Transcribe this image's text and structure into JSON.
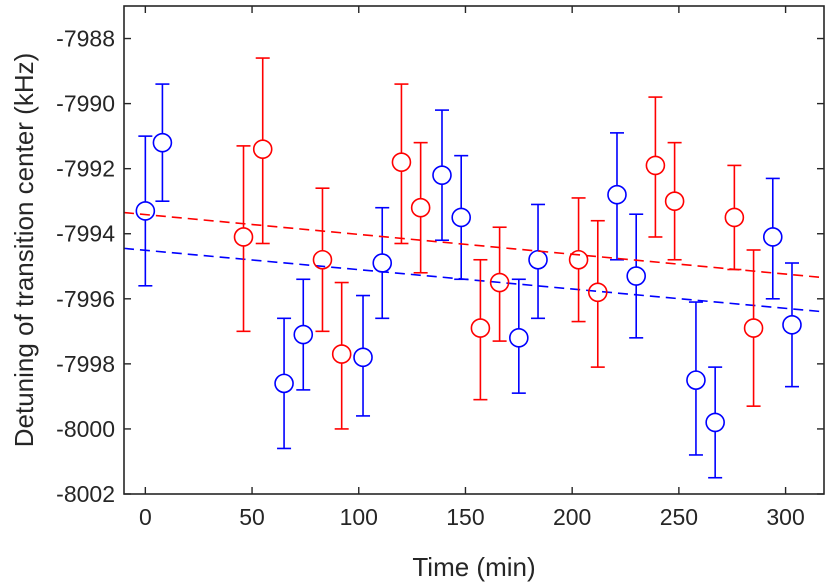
{
  "chart_data": {
    "type": "scatter",
    "title": "",
    "xlabel": "Time (min)",
    "ylabel": "Detuning of transition center (kHz)",
    "xlim": [
      -10,
      318
    ],
    "ylim": [
      -8002,
      -7987
    ],
    "xticks": [
      0,
      50,
      100,
      150,
      200,
      250,
      300
    ],
    "yticks": [
      -8002,
      -8000,
      -7998,
      -7996,
      -7994,
      -7992,
      -7990,
      -7988
    ],
    "grid": false,
    "legend": "none",
    "series": [
      {
        "name": "blue",
        "color": "#0000ff",
        "points": [
          {
            "x": 0,
            "y": -7993.3,
            "lo": -7995.6,
            "hi": -7991.0
          },
          {
            "x": 8,
            "y": -7991.2,
            "lo": -7993.0,
            "hi": -7989.4
          },
          {
            "x": 65,
            "y": -7998.6,
            "lo": -8000.6,
            "hi": -7996.6
          },
          {
            "x": 74,
            "y": -7997.1,
            "lo": -7998.8,
            "hi": -7995.4
          },
          {
            "x": 102,
            "y": -7997.8,
            "lo": -7999.6,
            "hi": -7995.9
          },
          {
            "x": 111,
            "y": -7994.9,
            "lo": -7996.6,
            "hi": -7993.2
          },
          {
            "x": 139,
            "y": -7992.2,
            "lo": -7994.2,
            "hi": -7990.2
          },
          {
            "x": 148,
            "y": -7993.5,
            "lo": -7995.4,
            "hi": -7991.6
          },
          {
            "x": 175,
            "y": -7997.2,
            "lo": -7998.9,
            "hi": -7995.4
          },
          {
            "x": 184,
            "y": -7994.8,
            "lo": -7996.6,
            "hi": -7993.1
          },
          {
            "x": 221,
            "y": -7992.8,
            "lo": -7994.8,
            "hi": -7990.9
          },
          {
            "x": 230,
            "y": -7995.3,
            "lo": -7997.2,
            "hi": -7993.4
          },
          {
            "x": 258,
            "y": -7998.5,
            "lo": -8000.8,
            "hi": -7996.1
          },
          {
            "x": 267,
            "y": -7999.8,
            "lo": -8001.5,
            "hi": -7998.1
          },
          {
            "x": 294,
            "y": -7994.1,
            "lo": -7996.0,
            "hi": -7992.3
          },
          {
            "x": 303,
            "y": -7996.8,
            "lo": -7998.7,
            "hi": -7994.9
          }
        ],
        "fit": {
          "x": [
            -10,
            318
          ],
          "y": [
            -7994.45,
            -7996.4
          ]
        }
      },
      {
        "name": "red",
        "color": "#ff0000",
        "points": [
          {
            "x": 46,
            "y": -7994.1,
            "lo": -7997.0,
            "hi": -7991.3
          },
          {
            "x": 55,
            "y": -7991.4,
            "lo": -7994.3,
            "hi": -7988.6
          },
          {
            "x": 83,
            "y": -7994.8,
            "lo": -7997.0,
            "hi": -7992.6
          },
          {
            "x": 92,
            "y": -7997.7,
            "lo": -8000.0,
            "hi": -7995.5
          },
          {
            "x": 120,
            "y": -7991.8,
            "lo": -7994.3,
            "hi": -7989.4
          },
          {
            "x": 129,
            "y": -7993.2,
            "lo": -7995.2,
            "hi": -7991.2
          },
          {
            "x": 157,
            "y": -7996.9,
            "lo": -7999.1,
            "hi": -7994.8
          },
          {
            "x": 166,
            "y": -7995.5,
            "lo": -7997.3,
            "hi": -7993.8
          },
          {
            "x": 203,
            "y": -7994.8,
            "lo": -7996.7,
            "hi": -7992.9
          },
          {
            "x": 212,
            "y": -7995.8,
            "lo": -7998.1,
            "hi": -7993.6
          },
          {
            "x": 239,
            "y": -7991.9,
            "lo": -7994.1,
            "hi": -7989.8
          },
          {
            "x": 248,
            "y": -7993.0,
            "lo": -7994.8,
            "hi": -7991.2
          },
          {
            "x": 276,
            "y": -7993.5,
            "lo": -7995.1,
            "hi": -7991.9
          },
          {
            "x": 285,
            "y": -7996.9,
            "lo": -7999.3,
            "hi": -7994.5
          }
        ],
        "fit": {
          "x": [
            -10,
            318
          ],
          "y": [
            -7993.35,
            -7995.35
          ]
        }
      }
    ]
  }
}
